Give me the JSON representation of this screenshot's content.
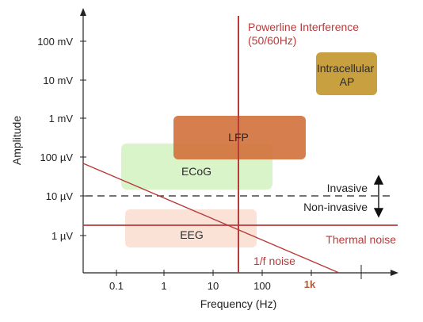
{
  "axes": {
    "y_label": "Amplitude",
    "x_label": "Frequency (Hz)",
    "y_ticks": [
      "100 mV",
      "10 mV",
      "1 mV",
      "100 µV",
      "10 µV",
      "1 µV"
    ],
    "x_ticks": [
      "0.1",
      "1",
      "10",
      "100",
      "1k"
    ]
  },
  "regions": {
    "intracellular": "Intracellular\nAP",
    "lfp": "LFP",
    "ecog": "ECoG",
    "eeg": "EEG"
  },
  "annotations": {
    "powerline": "Powerline Interference\n(50/60Hz)",
    "invasive": "Invasive",
    "non_invasive": "Non-invasive",
    "thermal_noise": "Thermal noise",
    "one_over_f": "1/f noise"
  },
  "colors": {
    "axis": "#222222",
    "accent_red": "#b83a3a",
    "intracellular_fill": "#c9a040",
    "lfp_fill": "#d2733e",
    "ecog_fill": "#d7f3c6",
    "eeg_fill": "#fbe0d4"
  }
}
